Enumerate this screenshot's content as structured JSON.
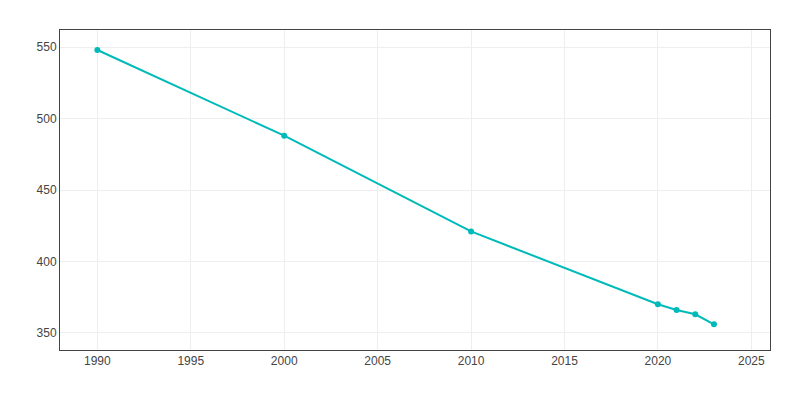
{
  "chart_data": {
    "type": "line",
    "x": [
      1990,
      2000,
      2010,
      2020,
      2021,
      2022,
      2023
    ],
    "values": [
      548,
      488,
      421,
      370,
      366,
      363,
      356
    ],
    "color": "#00BABA",
    "marker": "circle",
    "xlim": [
      1988,
      2026
    ],
    "xticks": [
      1990,
      1995,
      2000,
      2005,
      2010,
      2015,
      2020,
      2025
    ],
    "ylim": [
      338,
      562
    ],
    "yticks": [
      350,
      400,
      450,
      500,
      550
    ],
    "grid": true
  }
}
